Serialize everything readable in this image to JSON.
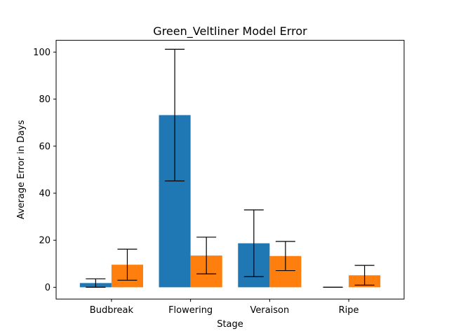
{
  "chart_data": {
    "type": "bar",
    "title": "Green_Veltliner Model Error",
    "xlabel": "Stage",
    "ylabel": "Average Error in Days",
    "categories": [
      "Budbreak",
      "Flowering",
      "Veraison",
      "Ripe"
    ],
    "ylim": [
      -5,
      105
    ],
    "yticks": [
      0,
      20,
      40,
      60,
      80,
      100
    ],
    "grid": false,
    "legend": "none",
    "series": [
      {
        "color": "#1f77b4",
        "values": [
          1.8,
          73.2,
          18.7,
          0
        ],
        "error": [
          1.8,
          28.0,
          14.2,
          0
        ]
      },
      {
        "color": "#ff7f0e",
        "values": [
          9.6,
          13.5,
          13.3,
          5.1
        ],
        "error": [
          6.6,
          7.8,
          6.2,
          4.2
        ]
      }
    ]
  }
}
